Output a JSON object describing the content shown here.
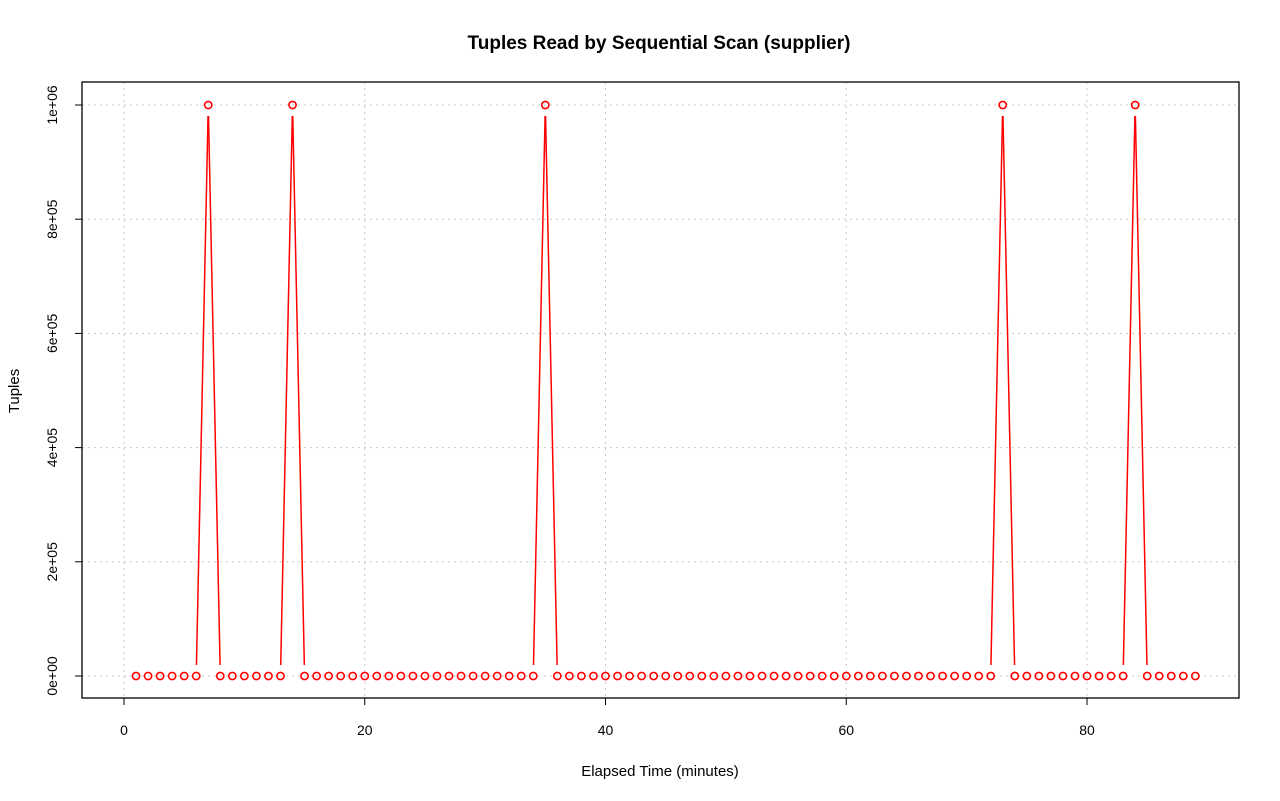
{
  "chart_data": {
    "type": "line",
    "title": "Tuples Read by Sequential Scan (supplier)",
    "xlabel": "Elapsed Time (minutes)",
    "ylabel": "Tuples",
    "xlim": [
      0,
      95
    ],
    "ylim": [
      0,
      1000000
    ],
    "x_ticks": [
      0,
      20,
      40,
      60,
      80
    ],
    "x_tick_labels": [
      "0",
      "20",
      "40",
      "60",
      "80"
    ],
    "y_ticks": [
      0,
      200000,
      400000,
      600000,
      800000,
      1000000
    ],
    "y_tick_labels": [
      "0e+00",
      "2e+05",
      "4e+05",
      "6e+05",
      "8e+05",
      "1e+06"
    ],
    "grid": true,
    "series_color": "#ff0000",
    "x": [
      1,
      2,
      3,
      4,
      5,
      6,
      7,
      8,
      9,
      10,
      11,
      12,
      13,
      14,
      15,
      16,
      17,
      18,
      19,
      20,
      21,
      22,
      23,
      24,
      25,
      26,
      27,
      28,
      29,
      30,
      31,
      32,
      33,
      34,
      35,
      36,
      37,
      38,
      39,
      40,
      41,
      42,
      43,
      44,
      45,
      46,
      47,
      48,
      49,
      50,
      51,
      52,
      53,
      54,
      55,
      56,
      57,
      58,
      59,
      60,
      61,
      62,
      63,
      64,
      65,
      66,
      67,
      68,
      69,
      70,
      71,
      72,
      73,
      74,
      75,
      76,
      77,
      78,
      79,
      80,
      81,
      82,
      83,
      84,
      85,
      86,
      87,
      88,
      89
    ],
    "y": [
      0,
      0,
      0,
      0,
      0,
      0,
      1000000,
      0,
      0,
      0,
      0,
      0,
      0,
      1000000,
      0,
      0,
      0,
      0,
      0,
      0,
      0,
      0,
      0,
      0,
      0,
      0,
      0,
      0,
      0,
      0,
      0,
      0,
      0,
      0,
      1000000,
      0,
      0,
      0,
      0,
      0,
      0,
      0,
      0,
      0,
      0,
      0,
      0,
      0,
      0,
      0,
      0,
      0,
      0,
      0,
      0,
      0,
      0,
      0,
      0,
      0,
      0,
      0,
      0,
      0,
      0,
      0,
      0,
      0,
      0,
      0,
      0,
      0,
      1000000,
      0,
      0,
      0,
      0,
      0,
      0,
      0,
      0,
      0,
      0,
      1000000,
      0,
      0,
      0,
      0,
      0
    ]
  }
}
